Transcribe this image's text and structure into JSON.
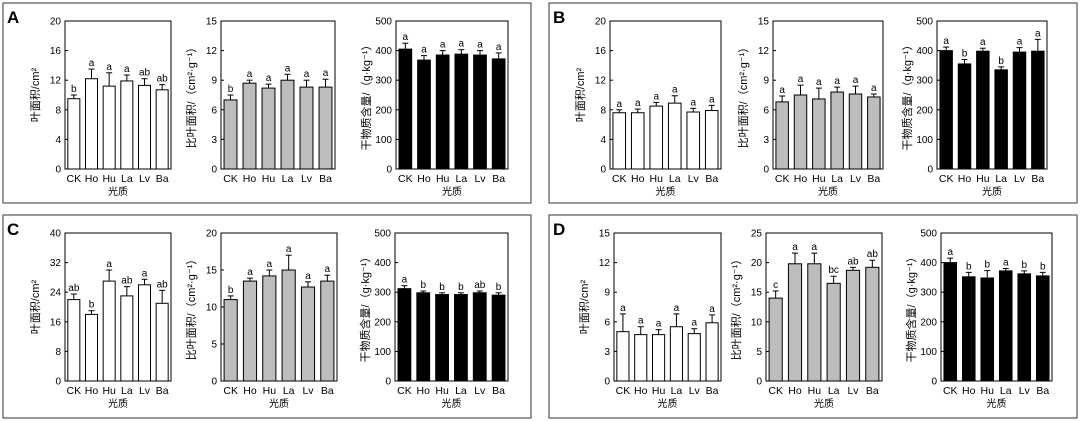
{
  "chart_data": [
    {
      "panel": "A",
      "charts": [
        {
          "type": "bar",
          "categories": [
            "CK",
            "Ho",
            "Hu",
            "La",
            "Lv",
            "Ba"
          ],
          "values": [
            9.5,
            12.2,
            11.2,
            11.9,
            11.3,
            10.7
          ],
          "errors": [
            0.5,
            1.3,
            1.8,
            0.8,
            0.9,
            0.7
          ],
          "letters": [
            "b",
            "a",
            "a",
            "a",
            "ab",
            "ab"
          ],
          "ylabel": "叶面积/cm²",
          "xlabel": "光质",
          "ylim": [
            0,
            20
          ],
          "ticks": [
            0,
            4,
            8,
            12,
            16,
            20
          ],
          "color": "#ffffff"
        },
        {
          "type": "bar",
          "categories": [
            "CK",
            "Ho",
            "Hu",
            "La",
            "Lv",
            "Ba"
          ],
          "values": [
            7.0,
            8.7,
            8.2,
            9.0,
            8.3,
            8.3
          ],
          "errors": [
            0.5,
            0.3,
            0.4,
            0.6,
            0.7,
            0.8
          ],
          "letters": [
            "b",
            "a",
            "a",
            "a",
            "a",
            "a"
          ],
          "ylabel": "比叶面积/（cm²·g⁻¹）",
          "xlabel": "",
          "ylim": [
            0,
            15
          ],
          "ticks": [
            0,
            3,
            6,
            9,
            12,
            15
          ],
          "color": "#bdbdbd"
        },
        {
          "type": "bar",
          "categories": [
            "CK",
            "Ho",
            "Hu",
            "La",
            "Lv",
            "Ba"
          ],
          "values": [
            405,
            368,
            385,
            388,
            385,
            372
          ],
          "errors": [
            20,
            15,
            15,
            15,
            15,
            20
          ],
          "letters": [
            "a",
            "a",
            "a",
            "a",
            "a",
            "a"
          ],
          "ylabel": "干物质含量/（g·kg⁻¹）",
          "xlabel": "光质",
          "ylim": [
            0,
            500
          ],
          "ticks": [
            0,
            100,
            200,
            300,
            400,
            500
          ],
          "color": "#000000"
        }
      ]
    },
    {
      "panel": "B",
      "charts": [
        {
          "type": "bar",
          "categories": [
            "CK",
            "Ho",
            "Hu",
            "La",
            "Lv",
            "Ba"
          ],
          "values": [
            7.6,
            7.6,
            8.5,
            8.9,
            7.7,
            7.9
          ],
          "errors": [
            0.4,
            0.5,
            0.5,
            1.0,
            0.5,
            0.7
          ],
          "letters": [
            "a",
            "a",
            "a",
            "a",
            "a",
            "a"
          ],
          "ylabel": "叶面积/cm²",
          "xlabel": "光质",
          "ylim": [
            0,
            20
          ],
          "ticks": [
            0,
            4,
            8,
            12,
            16,
            20
          ],
          "color": "#ffffff"
        },
        {
          "type": "bar",
          "categories": [
            "CK",
            "Ho",
            "Hu",
            "La",
            "Lv",
            "Ba"
          ],
          "values": [
            6.8,
            7.5,
            7.1,
            7.8,
            7.6,
            7.3
          ],
          "errors": [
            0.6,
            1.0,
            1.1,
            0.5,
            0.8,
            0.3
          ],
          "letters": [
            "a",
            "a",
            "a",
            "a",
            "a",
            "a"
          ],
          "ylabel": "比叶面积/（cm²·g⁻¹）",
          "xlabel": "光质",
          "ylim": [
            0,
            15
          ],
          "ticks": [
            0,
            3,
            6,
            9,
            12,
            15
          ],
          "color": "#bdbdbd"
        },
        {
          "type": "bar",
          "categories": [
            "CK",
            "Ho",
            "Hu",
            "La",
            "Lv",
            "Ba"
          ],
          "values": [
            400,
            355,
            398,
            335,
            395,
            398
          ],
          "errors": [
            12,
            15,
            10,
            10,
            15,
            40
          ],
          "letters": [
            "a",
            "b",
            "a",
            "b",
            "a",
            "a"
          ],
          "ylabel": "干物质含量/（g·kg⁻¹）",
          "xlabel": "光质",
          "ylim": [
            0,
            500
          ],
          "ticks": [
            0,
            100,
            200,
            300,
            400,
            500
          ],
          "color": "#000000"
        }
      ]
    },
    {
      "panel": "C",
      "charts": [
        {
          "type": "bar",
          "categories": [
            "CK",
            "Ho",
            "Hu",
            "La",
            "Lv",
            "Ba"
          ],
          "values": [
            22,
            18,
            27,
            23,
            26,
            21
          ],
          "errors": [
            1.5,
            1.0,
            3.0,
            2.5,
            1.5,
            3.5
          ],
          "letters": [
            "ab",
            "b",
            "a",
            "ab",
            "a",
            "ab"
          ],
          "ylabel": "叶面积/cm²",
          "xlabel": "光质",
          "ylim": [
            0,
            40
          ],
          "ticks": [
            0,
            8,
            16,
            24,
            32,
            40
          ],
          "color": "#ffffff"
        },
        {
          "type": "bar",
          "categories": [
            "CK",
            "Ho",
            "Hu",
            "La",
            "Lv",
            "Ba"
          ],
          "values": [
            11.0,
            13.5,
            14.2,
            15.0,
            12.7,
            13.5
          ],
          "errors": [
            0.5,
            0.4,
            0.8,
            2.0,
            0.7,
            0.8
          ],
          "letters": [
            "b",
            "a",
            "a",
            "a",
            "a",
            "a"
          ],
          "ylabel": "比叶面积/（cm²·g⁻¹）",
          "xlabel": "光质",
          "ylim": [
            0,
            20
          ],
          "ticks": [
            0,
            5,
            10,
            15,
            20
          ],
          "color": "#bdbdbd"
        },
        {
          "type": "bar",
          "categories": [
            "CK",
            "Ho",
            "Hu",
            "La",
            "Lv",
            "Ba"
          ],
          "values": [
            312,
            298,
            292,
            292,
            298,
            290
          ],
          "errors": [
            10,
            6,
            6,
            6,
            6,
            8
          ],
          "letters": [
            "a",
            "b",
            "b",
            "b",
            "ab",
            "b"
          ],
          "ylabel": "干物质含量/（g·kg⁻¹）",
          "xlabel": "光质",
          "ylim": [
            0,
            500
          ],
          "ticks": [
            0,
            100,
            200,
            300,
            400,
            500
          ],
          "color": "#000000"
        }
      ]
    },
    {
      "panel": "D",
      "charts": [
        {
          "type": "bar",
          "categories": [
            "CK",
            "Ho",
            "Hu",
            "La",
            "Lv",
            "Ba"
          ],
          "values": [
            5.0,
            4.7,
            4.7,
            5.5,
            4.8,
            5.9
          ],
          "errors": [
            1.8,
            0.8,
            0.5,
            1.3,
            0.5,
            0.8
          ],
          "letters": [
            "a",
            "a",
            "a",
            "a",
            "a",
            "a"
          ],
          "ylabel": "叶面积/cm²",
          "xlabel": "光质",
          "ylim": [
            0,
            15
          ],
          "ticks": [
            0,
            3,
            6,
            9,
            12,
            15
          ],
          "color": "#ffffff"
        },
        {
          "type": "bar",
          "categories": [
            "CK",
            "Ho",
            "Hu",
            "La",
            "Lv",
            "Ba"
          ],
          "values": [
            14.0,
            19.8,
            19.8,
            16.5,
            18.7,
            19.2
          ],
          "errors": [
            1.2,
            1.8,
            1.8,
            1.2,
            0.5,
            1.2
          ],
          "letters": [
            "c",
            "a",
            "a",
            "bc",
            "ab",
            "ab"
          ],
          "ylabel": "比叶面积/（cm²·g⁻¹）",
          "xlabel": "光质",
          "ylim": [
            0,
            25
          ],
          "ticks": [
            0,
            5,
            10,
            15,
            20,
            25
          ],
          "color": "#bdbdbd"
        },
        {
          "type": "bar",
          "categories": [
            "CK",
            "Ho",
            "Hu",
            "La",
            "Lv",
            "Ba"
          ],
          "values": [
            400,
            352,
            348,
            372,
            362,
            355
          ],
          "errors": [
            15,
            15,
            25,
            8,
            10,
            12
          ],
          "letters": [
            "a",
            "b",
            "b",
            "a",
            "b",
            "b"
          ],
          "ylabel": "干物质含量/（g·kg⁻¹）",
          "xlabel": "光质",
          "ylim": [
            0,
            500
          ],
          "ticks": [
            0,
            100,
            200,
            300,
            400,
            500
          ],
          "color": "#000000"
        }
      ]
    }
  ]
}
